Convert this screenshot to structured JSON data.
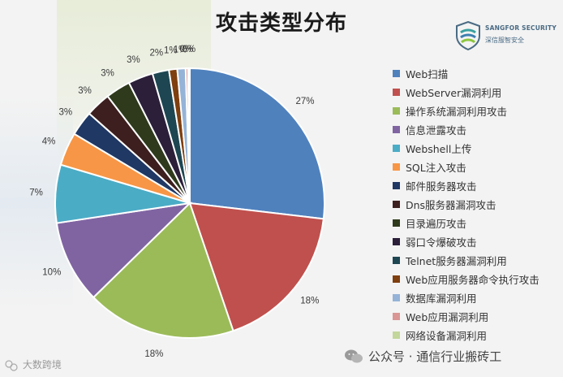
{
  "chart_data": {
    "type": "pie",
    "title": "攻击类型分布",
    "slices": [
      {
        "label": "Web扫描",
        "value": 27,
        "display": "27%",
        "color": "#4f81bd"
      },
      {
        "label": "WebServer漏洞利用",
        "value": 18,
        "display": "18%",
        "color": "#c0504d"
      },
      {
        "label": "操作系统漏洞利用攻击",
        "value": 18,
        "display": "18%",
        "color": "#9bbb59"
      },
      {
        "label": "信息泄露攻击",
        "value": 10,
        "display": "10%",
        "color": "#8064a2"
      },
      {
        "label": "Webshell上传",
        "value": 7,
        "display": "7%",
        "color": "#4bacc6"
      },
      {
        "label": "SQL注入攻击",
        "value": 4,
        "display": "4%",
        "color": "#f79646"
      },
      {
        "label": "邮件服务器攻击",
        "value": 3,
        "display": "3%",
        "color": "#1f3864"
      },
      {
        "label": "Dns服务器漏洞攻击",
        "value": 3,
        "display": "3%",
        "color": "#3d1f1f"
      },
      {
        "label": "目录遍历攻击",
        "value": 3,
        "display": "3%",
        "color": "#2f3a1c"
      },
      {
        "label": "弱口令爆破攻击",
        "value": 3,
        "display": "3%",
        "color": "#2b1f3a"
      },
      {
        "label": "Telnet服务器漏洞利用",
        "value": 2,
        "display": "2%",
        "color": "#1d4652"
      },
      {
        "label": "Web应用服务器命令执行攻击",
        "value": 1,
        "display": "1%",
        "color": "#7f3f0f"
      },
      {
        "label": "数据库漏洞利用",
        "value": 1,
        "display": "1%",
        "color": "#95b3d7"
      },
      {
        "label": "Web应用漏洞利用",
        "value": 0.3,
        "display": "0%",
        "color": "#d99694"
      },
      {
        "label": "网络设备漏洞利用",
        "value": 0.2,
        "display": "0%",
        "color": "#c3d69b"
      }
    ],
    "legend_position": "right"
  },
  "logo": {
    "name": "SANGFOR SECURITY",
    "sub": "深信服智安全"
  },
  "footer": {
    "left_text": "大数跨境",
    "right_text": "公众号 · 通信行业搬砖工"
  }
}
